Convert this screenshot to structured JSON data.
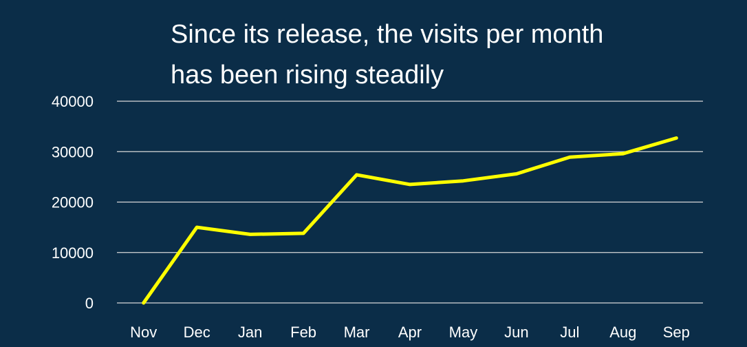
{
  "chart_data": {
    "type": "line",
    "title_lines": [
      "Since its release, the visits per month",
      "has been rising steadily"
    ],
    "categories": [
      "Nov",
      "Dec",
      "Jan",
      "Feb",
      "Mar",
      "Apr",
      "May",
      "Jun",
      "Jul",
      "Aug",
      "Sep"
    ],
    "series": [
      {
        "values": [
          0,
          15000,
          13600,
          13800,
          25400,
          23500,
          24200,
          25600,
          28900,
          29600,
          32700
        ]
      }
    ],
    "y_ticks": [
      "0",
      "10000",
      "20000",
      "30000",
      "40000"
    ],
    "ylim": [
      0,
      40000
    ],
    "grid": true,
    "legend": "none",
    "colors": {
      "background": "#0b2d48",
      "line": "#ffff00",
      "text": "#ffffff",
      "grid": "#d9d9d9"
    }
  }
}
